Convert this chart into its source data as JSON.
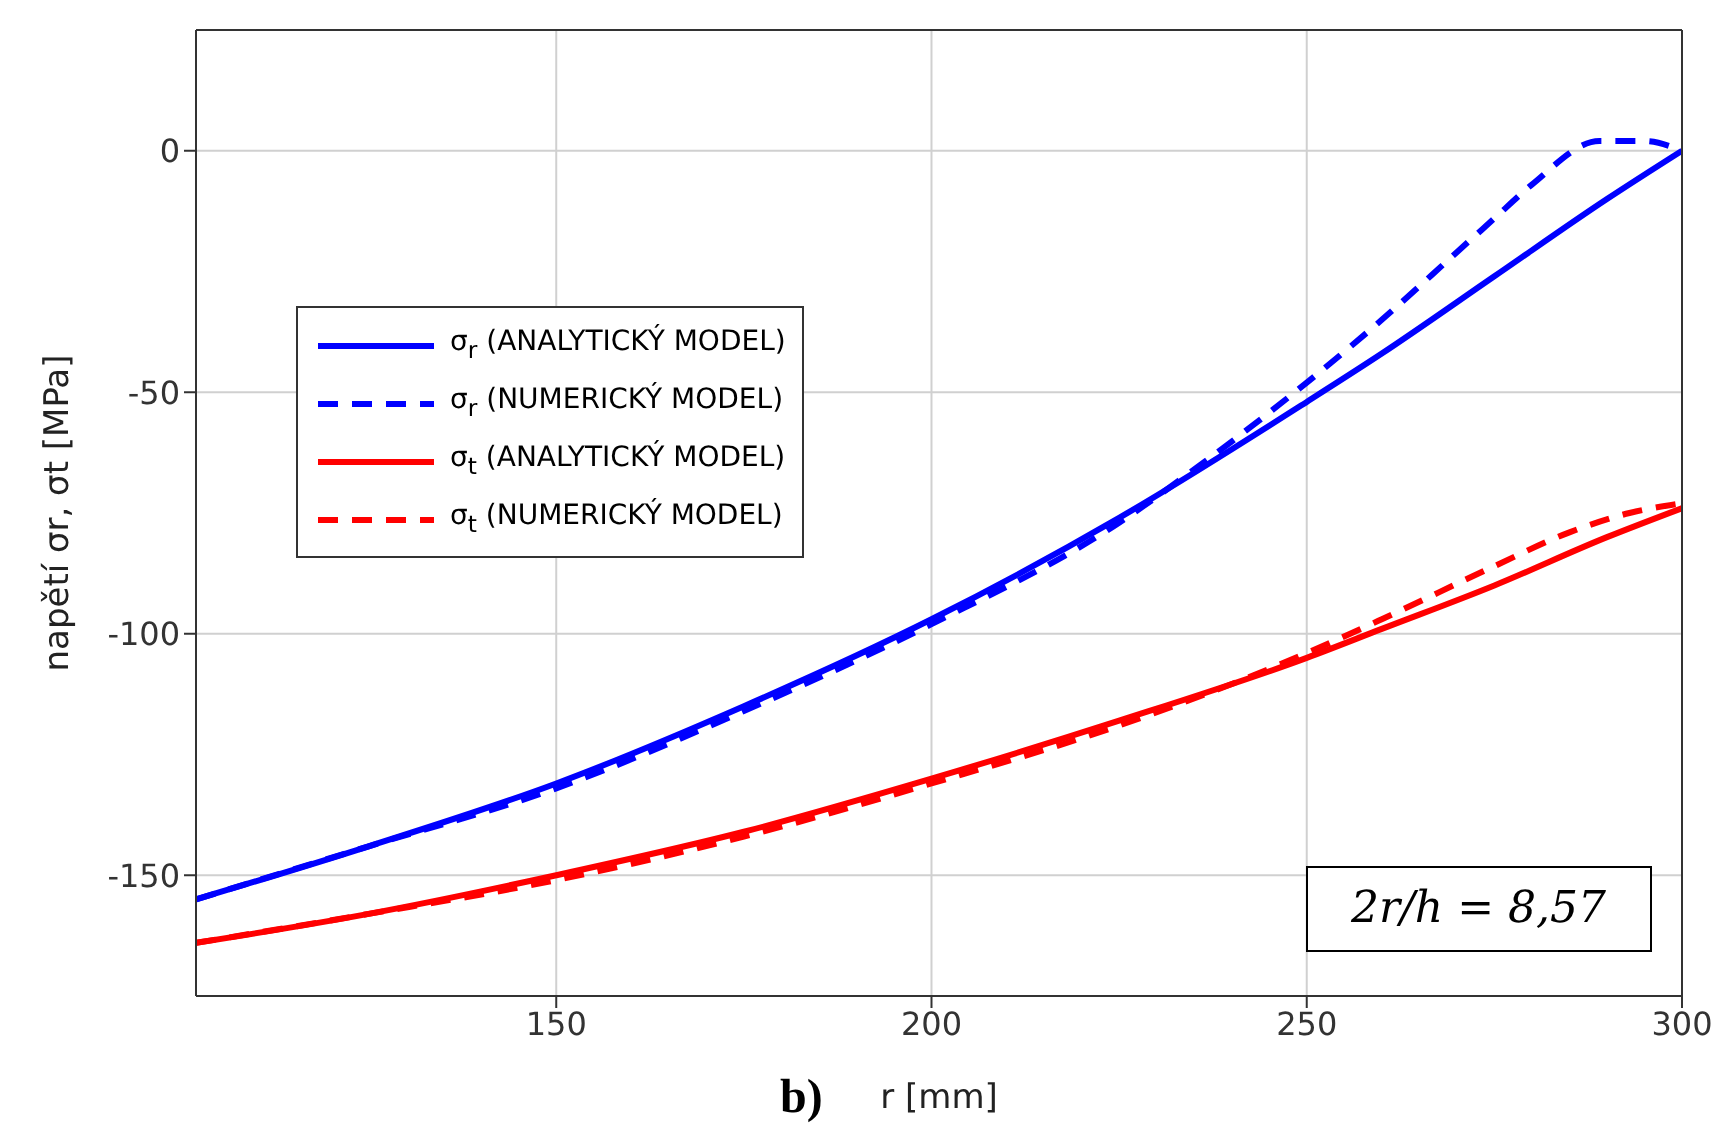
{
  "chart_data": {
    "type": "line",
    "xlabel": "r [mm]",
    "ylabel": "napětí σr, σt  [MPa]",
    "xlim": [
      102,
      300
    ],
    "xticks": [
      150,
      200,
      250,
      300
    ],
    "ylim": [
      -175,
      25
    ],
    "yticks": [
      -150,
      -100,
      -50,
      0
    ],
    "grid": true,
    "legend": "top left",
    "annotations": [
      "2r/h = 8,57",
      "b)"
    ],
    "series": [
      {
        "name": "σ$_{r}$ (ANALYTICKÝ MODEL)",
        "color": "#0000ff",
        "line_style": "solid",
        "x": [
          102,
          125,
          150,
          175,
          200,
          225,
          250,
          260,
          275,
          290,
          300
        ],
        "values": [
          -155,
          -144,
          -131,
          -115,
          -97,
          -76,
          -52,
          -42,
          -26,
          -10,
          0
        ]
      },
      {
        "name": "σ$_{r}$ (NUMERICKÝ MODEL)",
        "color": "#0000ff",
        "line_style": "dashed",
        "x": [
          102,
          125,
          150,
          175,
          200,
          225,
          235,
          250,
          260,
          270,
          275,
          280,
          289,
          295,
          300
        ],
        "values": [
          -155,
          -144,
          -132,
          -116,
          -98,
          -77,
          -66,
          -48,
          -35,
          -21,
          -14,
          -7,
          2,
          2,
          0
        ]
      },
      {
        "name": "σ$_{t}$ (ANALYTICKÝ MODEL)",
        "color": "#ff0000",
        "line_style": "solid",
        "x": [
          102,
          125,
          150,
          175,
          200,
          225,
          250,
          260,
          275,
          290,
          300
        ],
        "values": [
          -164,
          -158,
          -150,
          -141,
          -130,
          -118,
          -105,
          -99,
          -90,
          -80,
          -74
        ]
      },
      {
        "name": "σ$_{t}$ (NUMERICKÝ MODEL)",
        "color": "#ff0000",
        "line_style": "dashed",
        "x": [
          102,
          125,
          150,
          175,
          200,
          225,
          250,
          260,
          275,
          285,
          293,
          300
        ],
        "values": [
          -164,
          -158,
          -151,
          -142,
          -131,
          -119,
          -104,
          -97,
          -86,
          -79,
          -75,
          -73
        ]
      }
    ]
  }
}
